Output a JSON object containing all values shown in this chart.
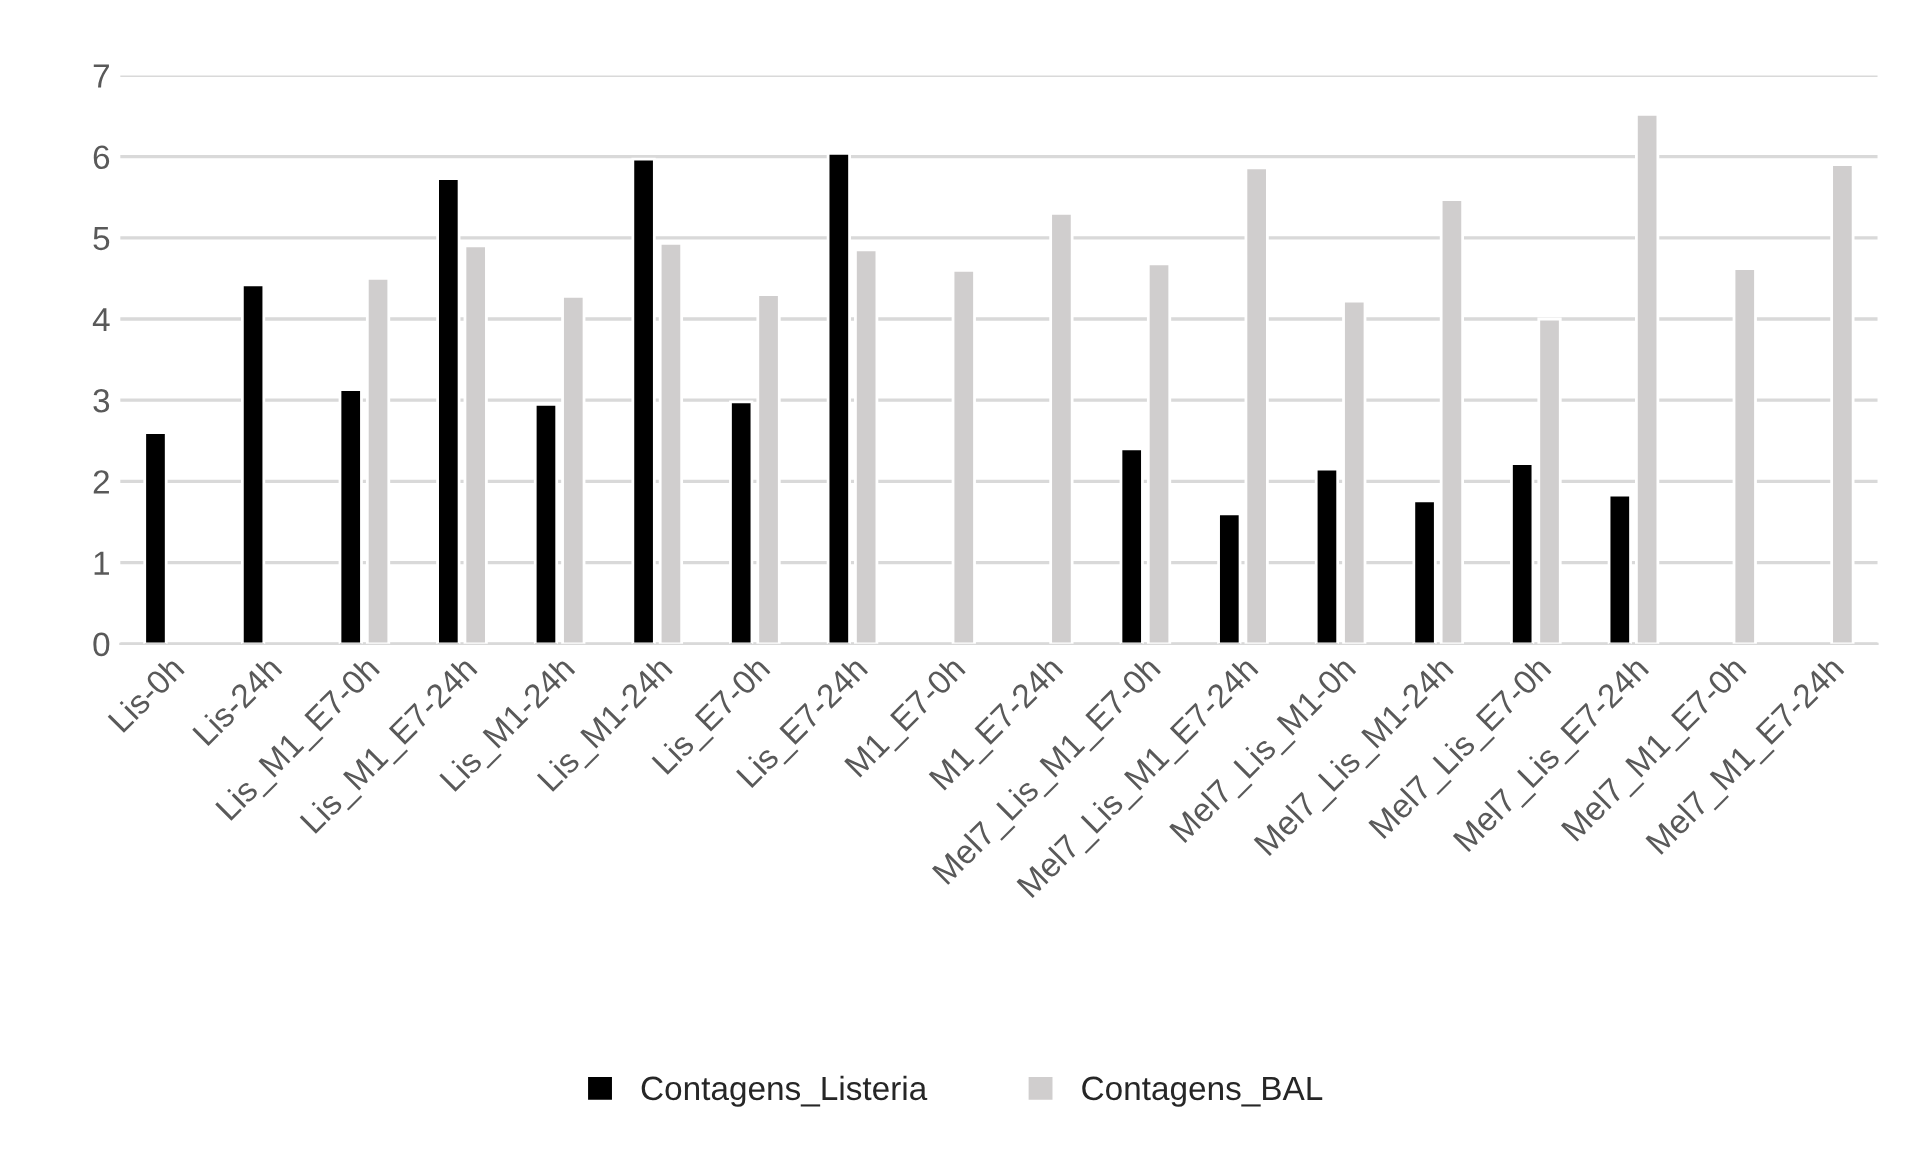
{
  "chart_data": {
    "type": "bar",
    "categories": [
      "Lis-0h",
      "Lis-24h",
      "Lis_M1_E7-0h",
      "Lis_M1_E7-24h",
      "Lis_M1-24h",
      "Lis_M1-24h",
      "Lis_E7-0h",
      "Lis_E7-24h",
      "M1_E7-0h",
      "M1_E7-24h",
      "Mel7_Lis_M1_E7-0h",
      "Mel7_Lis_M1_E7-24h",
      "Mel7_Lis_M1-0h",
      "Mel7_Lis_M1-24h",
      "Mel7_Lis_E7-0h",
      "Mel7_Lis_E7-24h",
      "Mel7_M1_E7-0h",
      "Mel7_M1_E7-24h"
    ],
    "series": [
      {
        "name": "Contagens_Listeria",
        "color": "#000000",
        "values": [
          2.6,
          4.42,
          3.13,
          5.73,
          2.95,
          5.97,
          2.98,
          6.04,
          null,
          null,
          2.4,
          1.6,
          2.15,
          1.76,
          2.22,
          1.83,
          null,
          null
        ]
      },
      {
        "name": "Contagens_BAL",
        "color": "#d0cece",
        "values": [
          null,
          null,
          4.5,
          4.9,
          4.28,
          4.93,
          4.3,
          4.85,
          4.6,
          5.3,
          4.68,
          5.86,
          4.22,
          5.47,
          4.0,
          6.52,
          4.62,
          5.9
        ]
      }
    ],
    "ylim": [
      0,
      7
    ],
    "yticks": [
      0,
      1,
      2,
      3,
      4,
      5,
      6,
      7
    ],
    "grid": "y",
    "legend": "bottom"
  }
}
